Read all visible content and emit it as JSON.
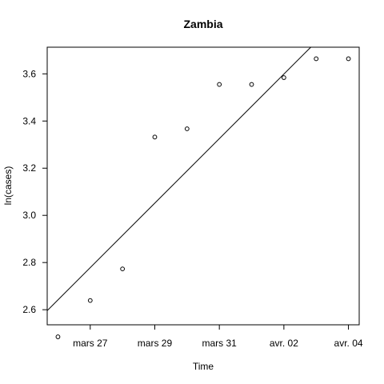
{
  "chart_data": {
    "type": "scatter",
    "title": "Zambia",
    "xlabel": "Time",
    "ylabel": "ln(cases)",
    "x_tick_labels": [
      "mars 27",
      "mars 29",
      "mars 31",
      "avr. 02",
      "avr. 04"
    ],
    "y_tick_labels": [
      "2.6",
      "2.8",
      "3.0",
      "3.2",
      "3.4",
      "3.6"
    ],
    "x": [
      "2020-03-26",
      "2020-03-27",
      "2020-03-28",
      "2020-03-29",
      "2020-03-30",
      "2020-03-31",
      "2020-04-01",
      "2020-04-02",
      "2020-04-03",
      "2020-04-04"
    ],
    "y": [
      2.485,
      2.639,
      2.773,
      3.332,
      3.367,
      3.555,
      3.555,
      3.584,
      3.664,
      3.664
    ],
    "xlim": [
      "2020-03-25T16:00",
      "2020-04-04T08:00"
    ],
    "ylim": [
      2.536,
      3.713
    ],
    "fit_line": {
      "at_start": {
        "x": "2020-03-25T16:00",
        "y": 2.596
      },
      "at_end": {
        "x": "2020-04-02T20:00",
        "y": 3.713
      }
    },
    "grid": false,
    "legend": "none",
    "marker": "open-circle"
  }
}
